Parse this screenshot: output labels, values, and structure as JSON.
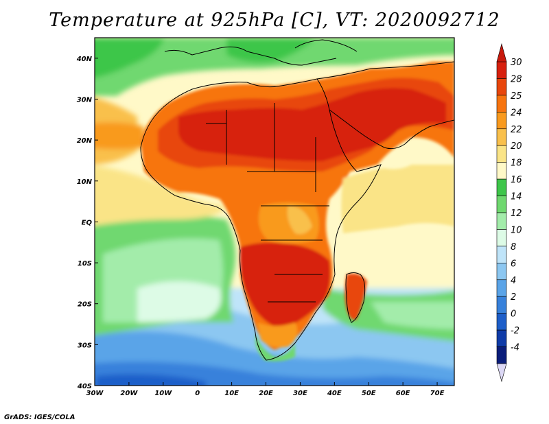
{
  "title": "Temperature at 925hPa [C], VT: 2020092712",
  "credit": "GrADS: IGES/COLA",
  "map": {
    "lon_range": [
      -30,
      75
    ],
    "lat_range": [
      -40,
      45
    ],
    "lon_ticks": [
      "30W",
      "20W",
      "10W",
      "0",
      "10E",
      "20E",
      "30E",
      "40E",
      "50E",
      "60E",
      "70E"
    ],
    "lat_ticks": [
      "40S",
      "30S",
      "20S",
      "10S",
      "EQ",
      "10N",
      "20N",
      "30N",
      "40N"
    ]
  },
  "colorbar": {
    "labels": [
      "30",
      "28",
      "25",
      "24",
      "22",
      "20",
      "18",
      "16",
      "14",
      "12",
      "10",
      "8",
      "6",
      "4",
      "2",
      "0",
      "-2",
      "-4"
    ],
    "colors": [
      "#d7200e",
      "#e8460c",
      "#f7740f",
      "#f99a1e",
      "#f9c04c",
      "#fae487",
      "#fff9c8",
      "#3ec64a",
      "#6fd86f",
      "#a3ecaa",
      "#ddfbe6",
      "#bfe4f9",
      "#8cc7f1",
      "#5aa4e8",
      "#3781db",
      "#1d5ec9",
      "#0f3ba8",
      "#0a1d7a"
    ],
    "top_arrow_color": "#c8190c",
    "bottom_arrow_color": "#dcd8f5"
  }
}
